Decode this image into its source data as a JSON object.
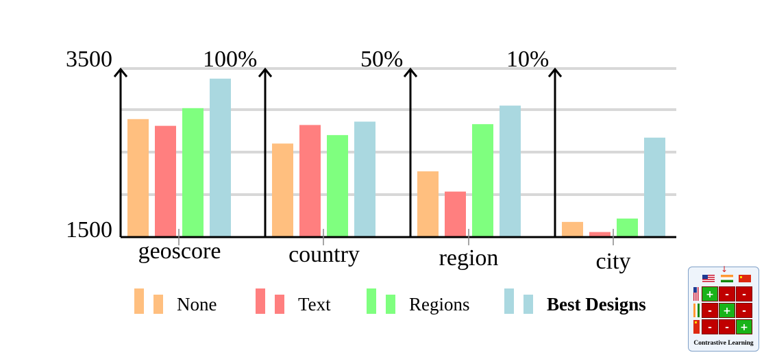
{
  "chart_data": {
    "type": "bar",
    "categories": [
      "geoscore",
      "country",
      "region",
      "city"
    ],
    "series": [
      {
        "name": "None",
        "color": "#FFBF7F"
      },
      {
        "name": "Text",
        "color": "#FF7F7F"
      },
      {
        "name": "Regions",
        "color": "#7FFF7F"
      },
      {
        "name": "Best Designs",
        "color": "#AAD8E0",
        "bold": true
      }
    ],
    "panels": [
      {
        "category": "geoscore",
        "axis_top_label": "3500",
        "axis_bottom_label": "1500",
        "ylim": [
          1500,
          3500
        ],
        "values": [
          2900,
          2820,
          3030,
          3380
        ]
      },
      {
        "category": "country",
        "axis_top_label": "100%",
        "ylim": [
          0,
          100
        ],
        "values": [
          55.5,
          66.5,
          60.5,
          68.5
        ]
      },
      {
        "category": "region",
        "axis_top_label": "50%",
        "ylim": [
          0,
          50
        ],
        "values": [
          19.5,
          13.5,
          33.5,
          39
        ]
      },
      {
        "category": "city",
        "axis_top_label": "10%",
        "ylim": [
          0,
          10
        ],
        "values": [
          0.9,
          0.3,
          1.1,
          5.9
        ]
      }
    ],
    "grid": true,
    "legend_position": "bottom"
  },
  "inset": {
    "caption": "Contrastive Learning",
    "matrix": [
      [
        "+",
        "-",
        "-"
      ],
      [
        "-",
        "+",
        "-"
      ],
      [
        "-",
        "-",
        "+"
      ]
    ],
    "flags": [
      "us-flag",
      "india-flag",
      "china-flag"
    ]
  }
}
